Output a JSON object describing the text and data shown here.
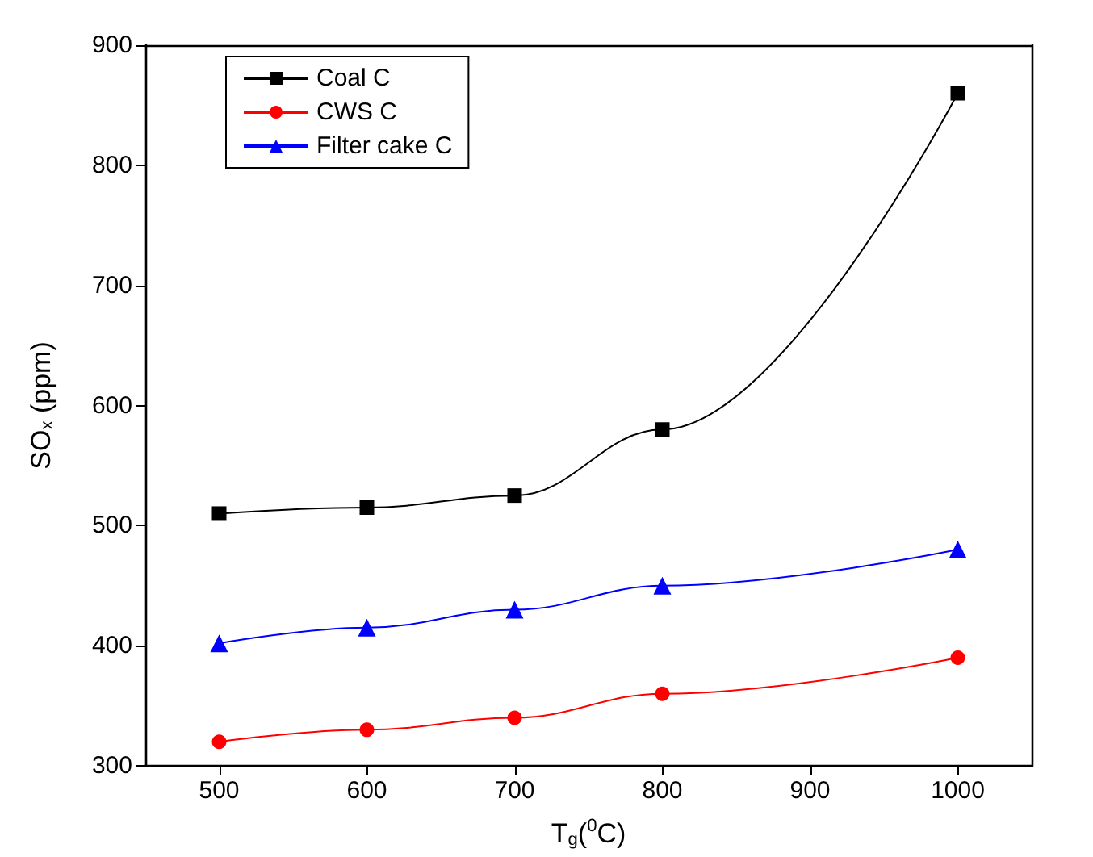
{
  "chart_data": {
    "type": "line",
    "xlabel": "T$_{g}$($^{0}$C)",
    "ylabel": "SO$_{x}$ (ppm)",
    "x": [
      500,
      600,
      700,
      800,
      1000
    ],
    "series": [
      {
        "name": "Coal C",
        "color": "#000000",
        "marker": "square",
        "values": [
          510,
          515,
          525,
          580,
          860
        ]
      },
      {
        "name": "CWS C",
        "color": "#ff0000",
        "marker": "circle",
        "values": [
          320,
          330,
          340,
          360,
          390
        ]
      },
      {
        "name": "Filter cake C",
        "color": "#0000ff",
        "marker": "triangle",
        "values": [
          402,
          415,
          430,
          450,
          480
        ]
      }
    ],
    "xlim": [
      450,
      1050
    ],
    "xticks": [
      500,
      600,
      700,
      800,
      900,
      1000
    ],
    "ylim": [
      300,
      900
    ],
    "yticks": [
      300,
      400,
      500,
      600,
      700,
      800,
      900
    ],
    "grid": false,
    "legend": "top left",
    "line_style": "solid"
  }
}
